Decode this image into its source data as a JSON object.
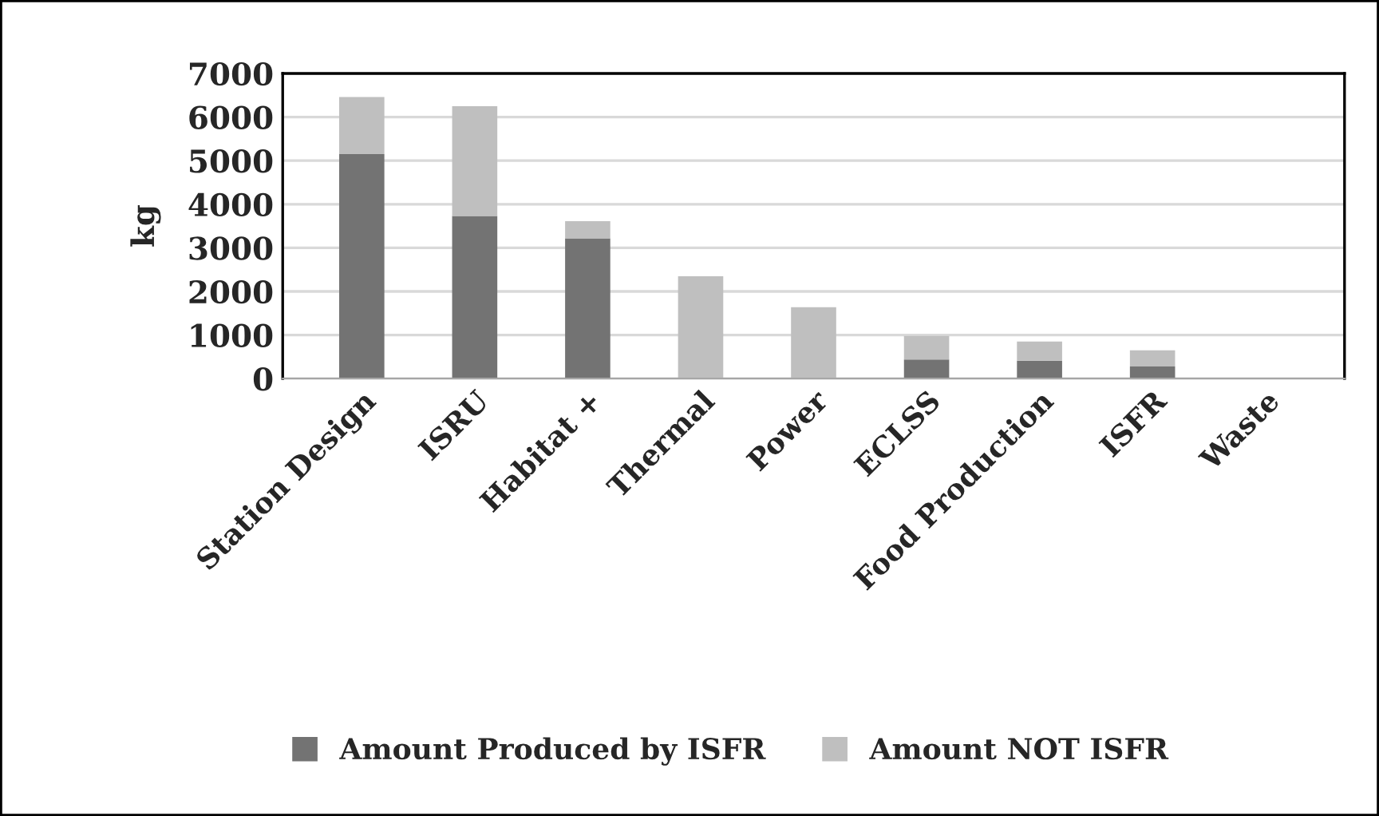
{
  "chart_data": {
    "type": "bar",
    "stacked": true,
    "ylabel": "kg",
    "categories": [
      "Station Design",
      "ISRU",
      "Habitat +",
      "Thermal",
      "Power",
      "ECLSS",
      "Food Production",
      "ISFR",
      "Waste"
    ],
    "series": [
      {
        "name": "Amount Produced by ISFR",
        "color": "#737373",
        "values": [
          5150,
          3730,
          3220,
          0,
          0,
          440,
          410,
          280,
          0
        ]
      },
      {
        "name": "Amount NOT ISFR",
        "color": "#bfbfbf",
        "values": [
          1310,
          2520,
          390,
          2350,
          1640,
          540,
          440,
          370,
          0
        ]
      }
    ],
    "ylim": [
      0,
      7000
    ],
    "yticks": [
      0,
      1000,
      2000,
      3000,
      4000,
      5000,
      6000,
      7000
    ],
    "grid": "y",
    "legend": "bottom"
  }
}
